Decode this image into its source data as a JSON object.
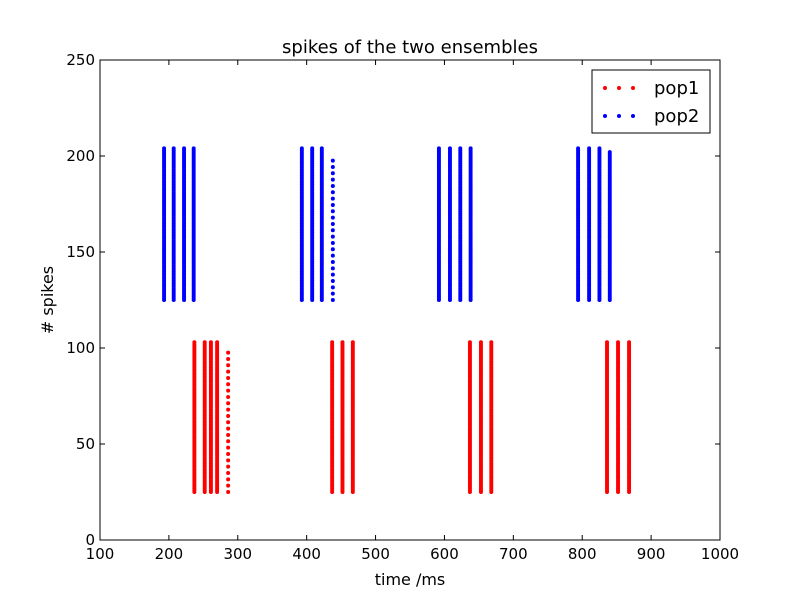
{
  "chart_data": {
    "type": "scatter",
    "title": "spikes  of the two ensembles",
    "xlabel": "time /ms",
    "ylabel": "# spikes",
    "xlim": [
      100,
      1000
    ],
    "ylim": [
      0,
      250
    ],
    "xticks": [
      100,
      200,
      300,
      400,
      500,
      600,
      700,
      800,
      900,
      1000
    ],
    "yticks": [
      0,
      50,
      100,
      150,
      200,
      250
    ],
    "xtick_labels": [
      "100",
      "200",
      "300",
      "400",
      "500",
      "600",
      "700",
      "800",
      "900",
      "1000"
    ],
    "ytick_labels": [
      "0",
      "50",
      "100",
      "150",
      "200",
      "250"
    ],
    "grid": false,
    "legend_position": "top-right",
    "series": [
      {
        "name": "pop1",
        "color": "#ff0000",
        "marker": "dot",
        "spike_columns": [
          {
            "x": 237,
            "y_range": [
              25,
              103
            ]
          },
          {
            "x": 252,
            "y_range": [
              25,
              103
            ]
          },
          {
            "x": 261,
            "y_range": [
              25,
              103
            ]
          },
          {
            "x": 270,
            "y_range": [
              25,
              103
            ]
          },
          {
            "x": 286,
            "y_range": [
              25,
              99
            ],
            "sparse": true
          },
          {
            "x": 437,
            "y_range": [
              25,
              103
            ]
          },
          {
            "x": 452,
            "y_range": [
              25,
              103
            ]
          },
          {
            "x": 467,
            "y_range": [
              25,
              103
            ]
          },
          {
            "x": 637,
            "y_range": [
              25,
              103
            ]
          },
          {
            "x": 653,
            "y_range": [
              25,
              103
            ]
          },
          {
            "x": 668,
            "y_range": [
              25,
              103
            ]
          },
          {
            "x": 836,
            "y_range": [
              25,
              103
            ]
          },
          {
            "x": 852,
            "y_range": [
              25,
              103
            ]
          },
          {
            "x": 868,
            "y_range": [
              25,
              103
            ]
          }
        ]
      },
      {
        "name": "pop2",
        "color": "#0000ff",
        "marker": "dot",
        "spike_columns": [
          {
            "x": 193,
            "y_range": [
              125,
              204
            ]
          },
          {
            "x": 207,
            "y_range": [
              125,
              204
            ]
          },
          {
            "x": 222,
            "y_range": [
              125,
              204
            ]
          },
          {
            "x": 236,
            "y_range": [
              125,
              204
            ]
          },
          {
            "x": 393,
            "y_range": [
              125,
              204
            ]
          },
          {
            "x": 408,
            "y_range": [
              125,
              204
            ]
          },
          {
            "x": 422,
            "y_range": [
              125,
              204
            ]
          },
          {
            "x": 438,
            "y_range": [
              125,
              200
            ],
            "sparse": true
          },
          {
            "x": 592,
            "y_range": [
              125,
              204
            ]
          },
          {
            "x": 608,
            "y_range": [
              125,
              204
            ]
          },
          {
            "x": 623,
            "y_range": [
              125,
              204
            ]
          },
          {
            "x": 638,
            "y_range": [
              125,
              204
            ]
          },
          {
            "x": 794,
            "y_range": [
              125,
              204
            ]
          },
          {
            "x": 810,
            "y_range": [
              125,
              204
            ]
          },
          {
            "x": 825,
            "y_range": [
              125,
              204
            ]
          },
          {
            "x": 840,
            "y_range": [
              125,
              202
            ]
          }
        ]
      }
    ]
  }
}
